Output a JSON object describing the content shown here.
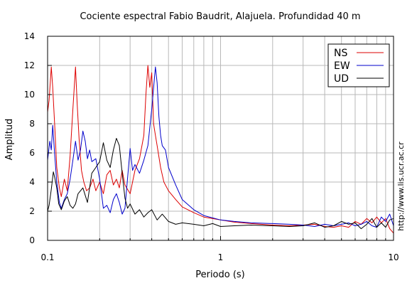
{
  "chart_data": {
    "type": "line",
    "title": "Cociente espectral Fabio Baudrit, Alajuela. Profundidad 40 m",
    "xlabel": "Periodo (s)",
    "ylabel": "Amplitud",
    "side_note": "http://www.lis.ucr.ac.cr",
    "x_scale": "log",
    "xlim": [
      0.1,
      10
    ],
    "ylim": [
      0,
      14
    ],
    "x_ticks": [
      {
        "value": 0.1,
        "label": "0.1"
      },
      {
        "value": 1,
        "label": "1"
      },
      {
        "value": 10,
        "label": "10"
      }
    ],
    "y_ticks": [
      {
        "value": 0,
        "label": "0"
      },
      {
        "value": 2,
        "label": "2"
      },
      {
        "value": 4,
        "label": "4"
      },
      {
        "value": 6,
        "label": "6"
      },
      {
        "value": 8,
        "label": "8"
      },
      {
        "value": 10,
        "label": "10"
      },
      {
        "value": 12,
        "label": "12"
      },
      {
        "value": 14,
        "label": "14"
      }
    ],
    "grid": true,
    "legend_position": "top-right",
    "series": [
      {
        "name": "NS",
        "color": "#dd0000",
        "x": [
          0.1,
          0.102,
          0.105,
          0.107,
          0.11,
          0.113,
          0.117,
          0.12,
          0.125,
          0.13,
          0.135,
          0.14,
          0.145,
          0.148,
          0.152,
          0.157,
          0.162,
          0.168,
          0.175,
          0.183,
          0.19,
          0.2,
          0.21,
          0.22,
          0.23,
          0.24,
          0.25,
          0.26,
          0.27,
          0.28,
          0.3,
          0.32,
          0.34,
          0.36,
          0.37,
          0.38,
          0.39,
          0.4,
          0.41,
          0.42,
          0.43,
          0.45,
          0.47,
          0.5,
          0.55,
          0.6,
          0.7,
          0.8,
          1.0,
          1.2,
          1.5,
          2.0,
          2.5,
          3.0,
          3.5,
          4.0,
          4.5,
          5.0,
          5.5,
          6.0,
          6.5,
          7.0,
          7.5,
          8.0,
          8.5,
          9.0,
          9.5,
          10.0
        ],
        "y": [
          8.8,
          9.6,
          11.9,
          10.5,
          7.8,
          5.0,
          3.6,
          3.0,
          4.2,
          3.4,
          5.8,
          9.0,
          11.9,
          9.5,
          7.0,
          4.8,
          4.0,
          3.4,
          3.6,
          4.2,
          3.4,
          4.0,
          3.2,
          4.5,
          4.8,
          3.8,
          4.2,
          3.6,
          4.8,
          3.8,
          3.2,
          4.8,
          5.6,
          7.2,
          10.0,
          12.0,
          10.5,
          11.5,
          8.0,
          7.2,
          6.5,
          5.0,
          4.0,
          3.4,
          2.8,
          2.3,
          1.9,
          1.6,
          1.4,
          1.25,
          1.15,
          1.05,
          1.0,
          1.05,
          1.1,
          0.95,
          0.9,
          1.0,
          0.9,
          1.3,
          1.1,
          1.5,
          1.2,
          1.6,
          1.2,
          1.5,
          0.8,
          0.5
        ]
      },
      {
        "name": "EW",
        "color": "#0000cc",
        "x": [
          0.1,
          0.103,
          0.105,
          0.107,
          0.11,
          0.113,
          0.117,
          0.12,
          0.125,
          0.13,
          0.135,
          0.14,
          0.145,
          0.15,
          0.155,
          0.16,
          0.165,
          0.17,
          0.175,
          0.18,
          0.19,
          0.2,
          0.21,
          0.22,
          0.23,
          0.24,
          0.25,
          0.26,
          0.27,
          0.28,
          0.3,
          0.31,
          0.32,
          0.34,
          0.36,
          0.38,
          0.4,
          0.42,
          0.43,
          0.44,
          0.45,
          0.46,
          0.48,
          0.5,
          0.55,
          0.6,
          0.7,
          0.8,
          1.0,
          1.2,
          1.5,
          2.0,
          2.5,
          3.0,
          3.5,
          4.0,
          4.5,
          5.0,
          5.5,
          6.0,
          6.5,
          7.0,
          7.5,
          8.0,
          8.5,
          9.0,
          9.5,
          10.0
        ],
        "y": [
          5.5,
          6.8,
          6.2,
          7.9,
          5.8,
          4.0,
          2.6,
          2.2,
          2.8,
          3.2,
          4.2,
          5.5,
          6.8,
          5.5,
          6.2,
          7.5,
          6.8,
          5.6,
          6.2,
          5.4,
          5.6,
          4.2,
          2.2,
          2.4,
          1.9,
          2.8,
          3.2,
          2.6,
          1.8,
          2.2,
          6.3,
          4.8,
          5.2,
          4.6,
          5.5,
          6.5,
          9.0,
          11.9,
          10.8,
          8.5,
          7.2,
          6.5,
          6.2,
          5.0,
          3.8,
          2.8,
          2.1,
          1.7,
          1.4,
          1.3,
          1.2,
          1.15,
          1.1,
          1.05,
          0.95,
          1.1,
          1.0,
          1.1,
          1.2,
          1.0,
          1.1,
          1.3,
          1.0,
          0.9,
          1.6,
          1.3,
          1.8,
          1.0
        ]
      },
      {
        "name": "UD",
        "color": "#000000",
        "x": [
          0.1,
          0.102,
          0.105,
          0.108,
          0.11,
          0.113,
          0.116,
          0.12,
          0.125,
          0.13,
          0.135,
          0.14,
          0.145,
          0.15,
          0.16,
          0.17,
          0.18,
          0.19,
          0.2,
          0.21,
          0.22,
          0.23,
          0.24,
          0.25,
          0.26,
          0.27,
          0.28,
          0.29,
          0.3,
          0.32,
          0.34,
          0.36,
          0.38,
          0.4,
          0.43,
          0.46,
          0.5,
          0.55,
          0.6,
          0.7,
          0.8,
          0.9,
          1.0,
          1.2,
          1.5,
          2.0,
          2.5,
          3.0,
          3.5,
          4.0,
          4.5,
          5.0,
          5.5,
          6.0,
          6.5,
          7.0,
          7.5,
          8.0,
          8.5,
          9.0,
          9.5,
          10.0
        ],
        "y": [
          2.0,
          2.4,
          3.5,
          4.7,
          4.3,
          3.6,
          2.5,
          2.1,
          2.7,
          3.0,
          2.4,
          2.2,
          2.5,
          3.2,
          3.6,
          2.6,
          4.6,
          5.0,
          5.4,
          6.7,
          5.5,
          5.0,
          6.2,
          7.0,
          6.5,
          4.6,
          2.9,
          2.2,
          2.5,
          1.8,
          2.1,
          1.6,
          1.9,
          2.1,
          1.4,
          1.8,
          1.3,
          1.1,
          1.2,
          1.1,
          1.0,
          1.15,
          0.95,
          1.0,
          1.05,
          1.0,
          0.95,
          1.0,
          1.2,
          0.9,
          1.0,
          1.3,
          1.1,
          1.2,
          0.8,
          1.1,
          1.5,
          0.9,
          1.2,
          0.9,
          1.4,
          1.5
        ]
      }
    ]
  }
}
